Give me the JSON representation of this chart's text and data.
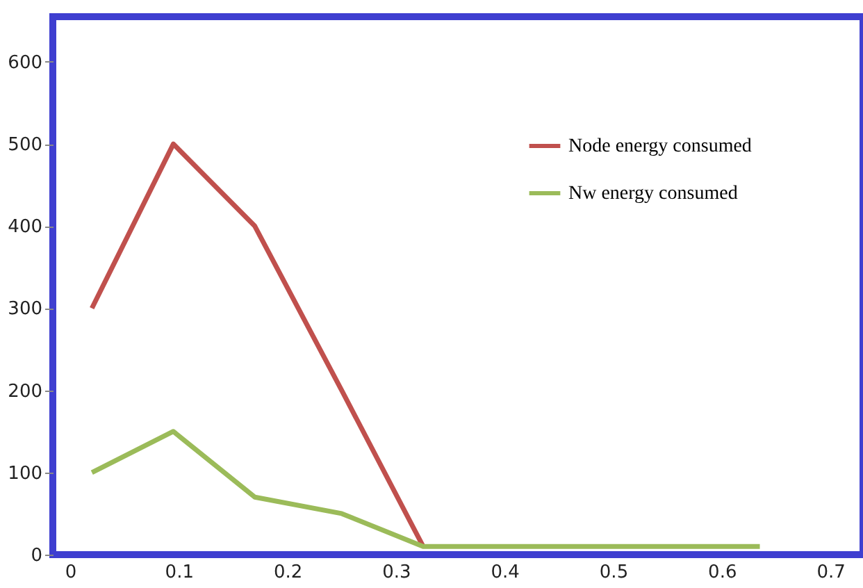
{
  "chart_data": {
    "type": "line",
    "x": [
      0.02,
      0.095,
      0.17,
      0.25,
      0.325,
      0.4,
      0.48,
      0.56,
      0.635
    ],
    "series": [
      {
        "name": "Node energy consumed",
        "color": "#c0504d",
        "values": [
          300,
          500,
          400,
          200,
          10,
          null,
          null,
          null,
          null
        ]
      },
      {
        "name": "Nw energy consumed",
        "color": "#9bbb59",
        "values": [
          100,
          150,
          70,
          50,
          10,
          10,
          10,
          10,
          10
        ]
      }
    ],
    "xlim": [
      -0.016,
      0.73
    ],
    "xticks": [
      0,
      0.1,
      0.2,
      0.3,
      0.4,
      0.5,
      0.6,
      0.7
    ],
    "ylim": [
      0,
      655
    ],
    "yticks": [
      0,
      100,
      200,
      300,
      400,
      500,
      600
    ],
    "grid": false,
    "legend": "top right",
    "marker": "none",
    "line_style": "solid"
  }
}
